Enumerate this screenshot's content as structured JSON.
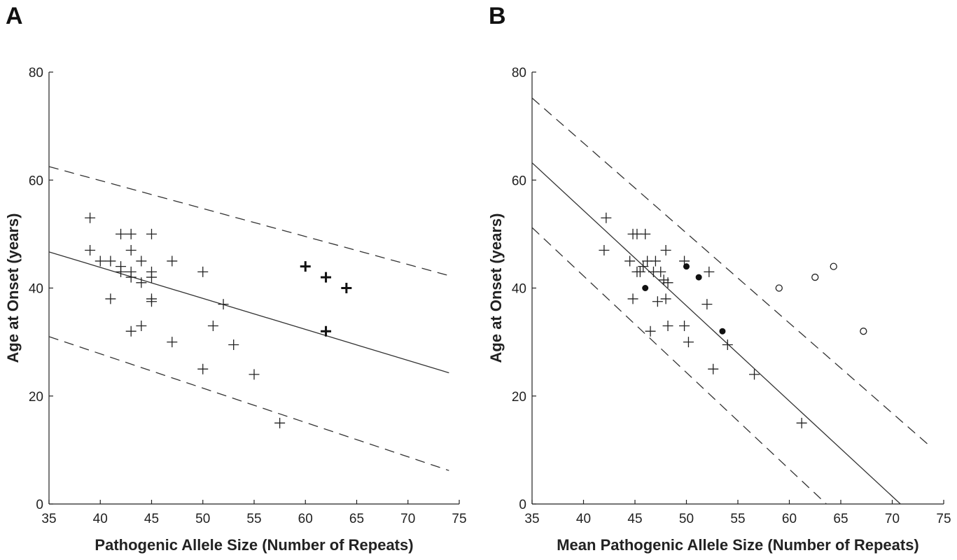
{
  "chart_data": [
    {
      "panel_label": "A",
      "type": "scatter",
      "xlabel": "Pathogenic Allele Size (Number of Repeats)",
      "ylabel": "Age at Onset (years)",
      "xlim": [
        35,
        75
      ],
      "ylim": [
        0,
        80
      ],
      "xticks": [
        35,
        40,
        45,
        50,
        55,
        60,
        65,
        70,
        75
      ],
      "yticks": [
        0,
        20,
        40,
        60,
        80
      ],
      "series": [
        {
          "marker": "plus",
          "points": [
            [
              39,
              53
            ],
            [
              39,
              47
            ],
            [
              40,
              45
            ],
            [
              41,
              45
            ],
            [
              41,
              38
            ],
            [
              42,
              50
            ],
            [
              42,
              44
            ],
            [
              42,
              43
            ],
            [
              43,
              50
            ],
            [
              43,
              47
            ],
            [
              43,
              43
            ],
            [
              43,
              42
            ],
            [
              43,
              32
            ],
            [
              44,
              45
            ],
            [
              44,
              41
            ],
            [
              44,
              33
            ],
            [
              45,
              50
            ],
            [
              45,
              43
            ],
            [
              45,
              42
            ],
            [
              45,
              38
            ],
            [
              45,
              37.5
            ],
            [
              47,
              45
            ],
            [
              47,
              30
            ],
            [
              50,
              43
            ],
            [
              50,
              25
            ],
            [
              51,
              33
            ],
            [
              52,
              37
            ],
            [
              53,
              29.5
            ],
            [
              55,
              24
            ],
            [
              57.5,
              15
            ]
          ]
        },
        {
          "marker": "plus-bold",
          "points": [
            [
              60,
              44
            ],
            [
              62,
              42
            ],
            [
              62,
              32
            ],
            [
              64,
              40
            ]
          ]
        }
      ],
      "lines": [
        {
          "style": "solid",
          "points": [
            [
              35,
              46.7
            ],
            [
              74,
              24.3
            ]
          ]
        },
        {
          "style": "dashed",
          "points": [
            [
              35,
              62.5
            ],
            [
              74,
              42.3
            ]
          ]
        },
        {
          "style": "dashed",
          "points": [
            [
              35,
              31
            ],
            [
              74,
              6.2
            ]
          ]
        }
      ]
    },
    {
      "panel_label": "B",
      "type": "scatter",
      "xlabel": "Mean Pathogenic Allele Size (Number of Repeats)",
      "ylabel": "Age at Onset (years)",
      "xlim": [
        35,
        75
      ],
      "ylim": [
        0,
        80
      ],
      "xticks": [
        35,
        40,
        45,
        50,
        55,
        60,
        65,
        70,
        75
      ],
      "yticks": [
        0,
        20,
        40,
        60,
        80
      ],
      "series": [
        {
          "marker": "plus",
          "points": [
            [
              42.2,
              53
            ],
            [
              42,
              47
            ],
            [
              44.5,
              45
            ],
            [
              44.8,
              50
            ],
            [
              45.2,
              50
            ],
            [
              45.2,
              43
            ],
            [
              45.8,
              44
            ],
            [
              45.5,
              43
            ],
            [
              46,
              50
            ],
            [
              46.2,
              45
            ],
            [
              47,
              45
            ],
            [
              46.8,
              43
            ],
            [
              47.5,
              43
            ],
            [
              47.8,
              41.5
            ],
            [
              48.2,
              41
            ],
            [
              48,
              47
            ],
            [
              44.8,
              38
            ],
            [
              47.2,
              37.5
            ],
            [
              48,
              38
            ],
            [
              46.5,
              32
            ],
            [
              48.2,
              33
            ],
            [
              49.8,
              45
            ],
            [
              49.8,
              33
            ],
            [
              50.2,
              30
            ],
            [
              52,
              37
            ],
            [
              52.2,
              43
            ],
            [
              52.6,
              25
            ],
            [
              54,
              29.5
            ],
            [
              56.6,
              24
            ],
            [
              61.2,
              15
            ]
          ]
        },
        {
          "marker": "filled-circle",
          "points": [
            [
              46,
              40
            ],
            [
              50,
              44
            ],
            [
              51.2,
              42
            ],
            [
              53.5,
              32
            ]
          ]
        },
        {
          "marker": "open-circle",
          "points": [
            [
              59,
              40
            ],
            [
              62.5,
              42
            ],
            [
              64.3,
              44
            ],
            [
              67.2,
              32
            ]
          ]
        }
      ],
      "lines": [
        {
          "style": "solid",
          "points": [
            [
              35,
              63.2
            ],
            [
              70.8,
              0
            ]
          ]
        },
        {
          "style": "dashed",
          "points": [
            [
              35,
              75.2
            ],
            [
              73.5,
              11
            ]
          ]
        },
        {
          "style": "dashed",
          "points": [
            [
              35,
              51.2
            ],
            [
              63.6,
              0
            ]
          ]
        }
      ]
    }
  ]
}
